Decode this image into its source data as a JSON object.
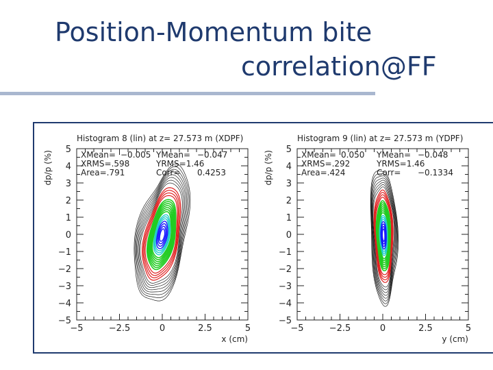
{
  "slide": {
    "title_line1": "Position-Momentum bite",
    "title_line2": "correlation@FF"
  },
  "colors": {
    "title": "#1f3a6e",
    "rule": "#a9b7cf",
    "contour_black": "#222222",
    "contour_red": "#e02020",
    "contour_green": "#22cc22",
    "contour_cyan": "#22cccc",
    "contour_blue": "#1a1aff"
  },
  "chart_data": [
    {
      "type": "contour",
      "title": "Histogram 8 (lin) at z= 27.573 m (XDPF)",
      "xlabel": "x (cm)",
      "ylabel": "dp/p (%)",
      "xlim": [
        -5,
        5
      ],
      "ylim": [
        -5,
        5
      ],
      "xticks": [
        "−5",
        "−2.5",
        "0",
        "2.5",
        "5"
      ],
      "yticks": [
        "5",
        "4",
        "3",
        "2",
        "1",
        "0",
        "−1",
        "−2",
        "−3",
        "−4",
        "−5"
      ],
      "stats": [
        [
          "XMean=",
          "−0.005",
          "YMean=",
          "−0.047"
        ],
        [
          "XRMS=.598",
          "",
          "YRMS=1.46",
          ""
        ],
        [
          "Area=.791",
          "",
          "Corr=",
          "0.4253"
        ]
      ],
      "xmean": -0.005,
      "ymean": -0.047,
      "xrms": 0.598,
      "yrms": 1.46,
      "area": 0.791,
      "corr": 0.4253
    },
    {
      "type": "contour",
      "title": "Histogram 9 (lin) at z= 27.573 m (YDPF)",
      "xlabel": "y (cm)",
      "ylabel": "dp/p (%)",
      "xlim": [
        -5,
        5
      ],
      "ylim": [
        -5,
        5
      ],
      "xticks": [
        "−5",
        "−2.5",
        "0",
        "2.5",
        "5"
      ],
      "yticks": [
        "5",
        "4",
        "3",
        "2",
        "1",
        "0",
        "−1",
        "−2",
        "−3",
        "−4",
        "−5"
      ],
      "stats": [
        [
          "XMean=",
          "0.050",
          "YMean=",
          "−0.048"
        ],
        [
          "XRMS=.292",
          "",
          "YRMS=1.46",
          ""
        ],
        [
          "Area=.424",
          "",
          "Corr=",
          "−0.1334"
        ]
      ],
      "xmean": 0.05,
      "ymean": -0.048,
      "xrms": 0.292,
      "yrms": 1.46,
      "area": 0.424,
      "corr": -0.1334
    }
  ]
}
